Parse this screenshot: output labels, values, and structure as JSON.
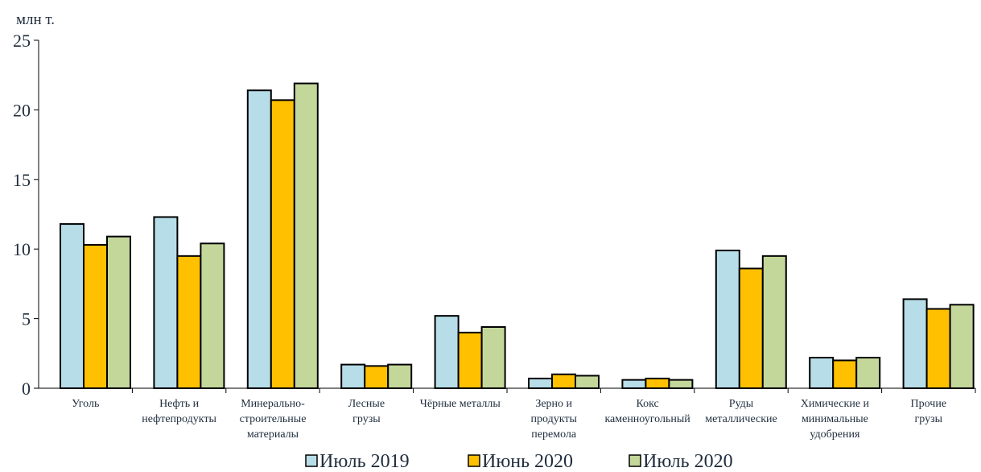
{
  "chart_data": {
    "type": "bar",
    "title": "",
    "unit_label": "млн т.",
    "xlabel": "",
    "ylabel": "",
    "ylim": [
      0,
      25
    ],
    "yticks": [
      0,
      5,
      10,
      15,
      20,
      25
    ],
    "grid": false,
    "legend_position": "bottom",
    "categories": [
      [
        "Уголь"
      ],
      [
        "Нефть и",
        "нефтепродукты"
      ],
      [
        "Минерально-",
        "строительные",
        "материалы"
      ],
      [
        "Лесные",
        "грузы"
      ],
      [
        "Чёрные металлы"
      ],
      [
        "Зерно и",
        "продукты",
        "перемола"
      ],
      [
        "Кокс",
        "каменноугольный"
      ],
      [
        "Руды",
        "металлические"
      ],
      [
        "Химические и",
        "минимальные",
        "удобрения"
      ],
      [
        "Прочие",
        "грузы"
      ]
    ],
    "series": [
      {
        "name": "Июль 2019",
        "color": "#b7dde8",
        "values": [
          11.8,
          12.3,
          21.4,
          1.7,
          5.2,
          0.7,
          0.6,
          9.9,
          2.2,
          6.4
        ]
      },
      {
        "name": "Июнь 2020",
        "color": "#ffc000",
        "values": [
          10.3,
          9.5,
          20.7,
          1.6,
          4.0,
          1.0,
          0.7,
          8.6,
          2.0,
          5.7
        ]
      },
      {
        "name": "Июль 2020",
        "color": "#c4d79b",
        "values": [
          10.9,
          10.4,
          21.9,
          1.7,
          4.4,
          0.9,
          0.6,
          9.5,
          2.2,
          6.0
        ]
      }
    ]
  }
}
